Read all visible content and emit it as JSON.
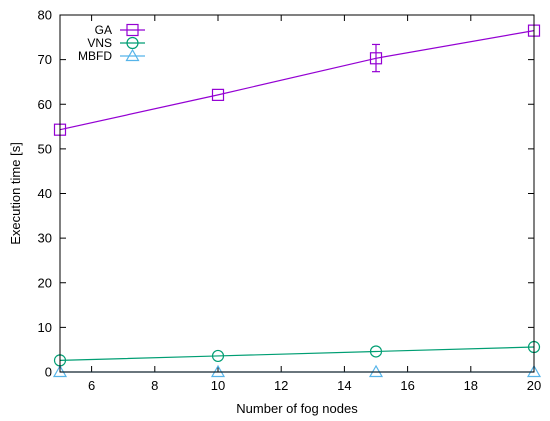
{
  "chart_data": {
    "type": "line",
    "title": "",
    "xlabel": "Number of fog nodes",
    "ylabel": "Execution time [s]",
    "xlim": [
      5,
      20
    ],
    "ylim": [
      0,
      80
    ],
    "x_ticks": [
      6,
      8,
      10,
      12,
      14,
      16,
      18,
      20
    ],
    "y_ticks": [
      0,
      10,
      20,
      30,
      40,
      50,
      60,
      70,
      80
    ],
    "grid": false,
    "legend_position": "top-left",
    "x": [
      5,
      10,
      15,
      20
    ],
    "series": [
      {
        "name": "GA",
        "values": [
          54.3,
          62.1,
          70.3,
          76.5
        ],
        "error_low": [
          null,
          null,
          67.3,
          null
        ],
        "error_high": [
          null,
          null,
          73.4,
          null
        ],
        "marker": "square",
        "color": "#9400d3"
      },
      {
        "name": "VNS",
        "values": [
          2.6,
          3.6,
          4.6,
          5.6
        ],
        "marker": "circle",
        "color": "#009e73"
      },
      {
        "name": "MBFD",
        "values": [
          0.0,
          0.0,
          0.0,
          0.0
        ],
        "marker": "triangle",
        "color": "#56b4e9"
      }
    ]
  }
}
